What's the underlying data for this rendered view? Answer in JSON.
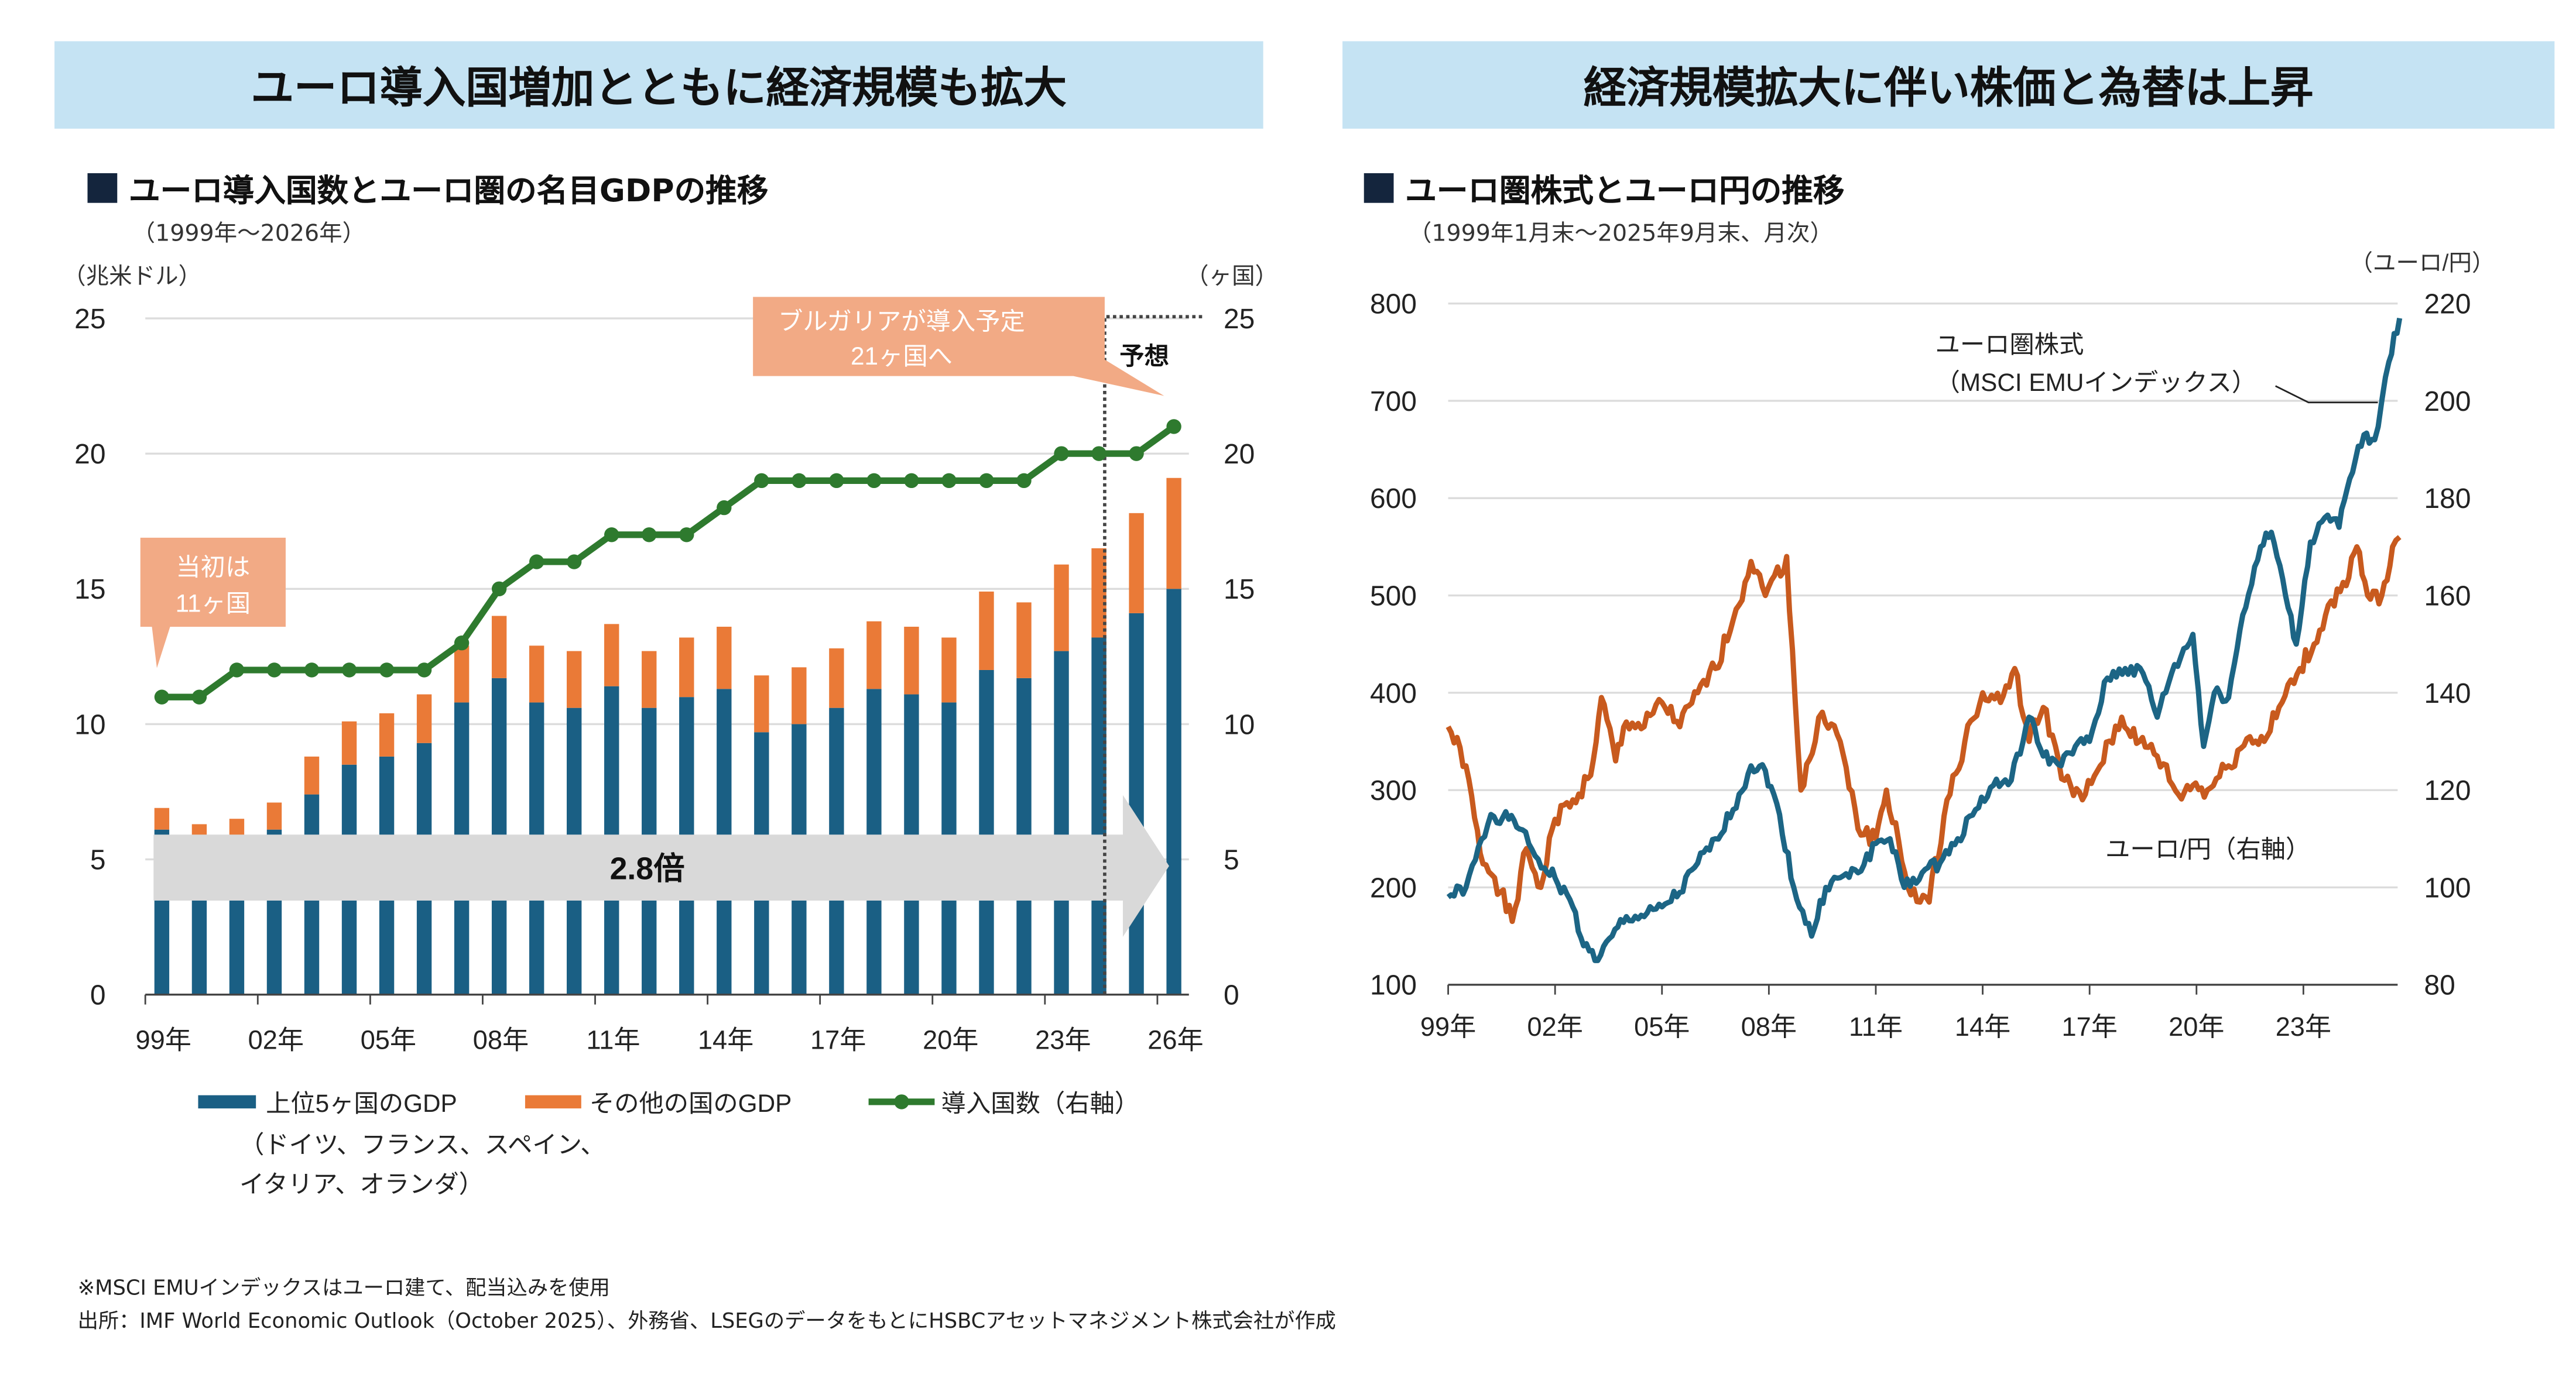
{
  "left": {
    "banner": "ユーロ導入国増加とともに経済規模も拡大",
    "title": "ユーロ導入国数とユーロ圏の名目GDPの推移",
    "subtitle": "（1999年～2026年）",
    "callout_initial": [
      "当初は",
      "11ヶ国"
    ],
    "callout_bulgaria": [
      "ブルガリアが導入予定",
      "21ヶ国へ"
    ],
    "forecast_label": "予想",
    "growth_label": "2.8倍",
    "legend_note": [
      "（ドイツ、フランス、スペイン、",
      "イタリア、オランダ）"
    ]
  },
  "right": {
    "banner": "経済規模拡大に伴い株価と為替は上昇",
    "title": "ユーロ圏株式とユーロ円の推移",
    "subtitle": "（1999年1月末～2025年9月末、月次）",
    "stock_label": [
      "ユーロ圏株式",
      "（MSCI EMUインデックス）"
    ],
    "fx_label": "ユーロ/円（右軸）"
  },
  "footer": {
    "note": "※MSCI EMUインデックスはユーロ建て、配当込みを使用",
    "source": "出所：IMF World Economic Outlook（October 2025）、外務省、LSEGのデータをもとにHSBCアセットマネジメント株式会社が作成"
  },
  "chart_data": [
    {
      "type": "bar",
      "stacked": true,
      "categories": [
        "1999",
        "2000",
        "2001",
        "2002",
        "2003",
        "2004",
        "2005",
        "2006",
        "2007",
        "2008",
        "2009",
        "2010",
        "2011",
        "2012",
        "2013",
        "2014",
        "2015",
        "2016",
        "2017",
        "2018",
        "2019",
        "2020",
        "2021",
        "2022",
        "2023",
        "2024",
        "2025",
        "2026"
      ],
      "x_tick_labels": [
        "99年",
        "02年",
        "05年",
        "08年",
        "11年",
        "14年",
        "17年",
        "20年",
        "23年",
        "26年"
      ],
      "ylabel": "（兆米ドル）",
      "y2label": "（ヶ国）",
      "ylim": [
        0,
        25
      ],
      "y2lim": [
        0,
        25
      ],
      "yticks": [
        0,
        5,
        10,
        15,
        20,
        25
      ],
      "y2ticks": [
        0,
        5,
        10,
        15,
        20,
        25
      ],
      "grid": true,
      "legend_position": "bottom",
      "forecast_from": "2025",
      "series": [
        {
          "name": "上位5ヶ国のGDP",
          "kind": "bar",
          "color": "#1a5f84",
          "values": [
            6.1,
            5.6,
            5.7,
            6.1,
            7.4,
            8.5,
            8.8,
            9.3,
            10.8,
            11.7,
            10.8,
            10.6,
            11.4,
            10.6,
            11.0,
            11.3,
            9.7,
            10.0,
            10.6,
            11.3,
            11.1,
            10.8,
            12.0,
            11.7,
            12.7,
            13.2,
            14.1,
            15.0
          ]
        },
        {
          "name": "その他の国のGDP",
          "kind": "bar",
          "color": "#ea7a37",
          "values": [
            0.8,
            0.7,
            0.8,
            1.0,
            1.4,
            1.6,
            1.6,
            1.8,
            2.1,
            2.3,
            2.1,
            2.1,
            2.3,
            2.1,
            2.2,
            2.3,
            2.1,
            2.1,
            2.2,
            2.5,
            2.5,
            2.4,
            2.9,
            2.8,
            3.2,
            3.3,
            3.7,
            4.1
          ]
        },
        {
          "name": "導入国数（右軸）",
          "kind": "line",
          "axis": "right",
          "color": "#2e7a2e",
          "values": [
            11,
            11,
            12,
            12,
            12,
            12,
            12,
            12,
            13,
            15,
            16,
            16,
            17,
            17,
            17,
            18,
            19,
            19,
            19,
            19,
            19,
            19,
            19,
            19,
            20,
            20,
            20,
            21
          ]
        }
      ]
    },
    {
      "type": "line",
      "x_tick_labels": [
        "99年",
        "02年",
        "05年",
        "08年",
        "11年",
        "14年",
        "17年",
        "20年",
        "23年"
      ],
      "y2label": "（ユーロ/円）",
      "ylim": [
        100,
        800
      ],
      "y2lim": [
        80,
        220
      ],
      "yticks": [
        100,
        200,
        300,
        400,
        500,
        600,
        700,
        800
      ],
      "y2ticks": [
        80,
        100,
        120,
        140,
        160,
        180,
        200,
        220
      ],
      "grid": true,
      "series": [
        {
          "name": "ユーロ圏株式（MSCI EMUインデックス）",
          "axis": "left",
          "color": "#1c6585",
          "x": [
            1999.0,
            1999.5,
            2000.2,
            2000.7,
            2001.0,
            2001.7,
            2002.0,
            2002.5,
            2002.8,
            2003.2,
            2003.6,
            2004.0,
            2004.5,
            2005.0,
            2005.5,
            2006.0,
            2006.5,
            2007.0,
            2007.5,
            2007.9,
            2008.3,
            2008.7,
            2009.2,
            2009.6,
            2010.0,
            2010.5,
            2011.0,
            2011.4,
            2011.8,
            2012.3,
            2012.8,
            2013.3,
            2013.8,
            2014.3,
            2014.8,
            2015.3,
            2015.7,
            2016.2,
            2016.6,
            2017.0,
            2017.5,
            2018.0,
            2018.5,
            2018.9,
            2019.3,
            2019.9,
            2020.2,
            2020.5,
            2020.9,
            2021.3,
            2021.8,
            2022.1,
            2022.5,
            2022.8,
            2023.2,
            2023.6,
            2024.0,
            2024.3,
            2024.7,
            2025.0,
            2025.2,
            2025.4,
            2025.7
          ],
          "y": [
            190,
            200,
            275,
            270,
            260,
            220,
            210,
            180,
            140,
            125,
            150,
            170,
            170,
            180,
            195,
            225,
            250,
            280,
            325,
            320,
            275,
            200,
            150,
            200,
            210,
            215,
            245,
            250,
            200,
            215,
            225,
            250,
            280,
            305,
            310,
            375,
            335,
            325,
            345,
            350,
            415,
            425,
            420,
            375,
            420,
            460,
            345,
            400,
            395,
            480,
            550,
            565,
            500,
            450,
            555,
            580,
            570,
            620,
            665,
            660,
            700,
            740,
            785
          ]
        },
        {
          "name": "ユーロ/円（右軸）",
          "axis": "right",
          "color": "#c85a1e",
          "x": [
            1999.0,
            1999.5,
            1999.9,
            2000.3,
            2000.8,
            2001.2,
            2001.6,
            2002.0,
            2002.5,
            2003.0,
            2003.3,
            2003.7,
            2004.0,
            2004.5,
            2005.0,
            2005.5,
            2006.0,
            2006.5,
            2007.0,
            2007.5,
            2007.9,
            2008.5,
            2008.9,
            2009.3,
            2009.5,
            2010.0,
            2010.5,
            2011.0,
            2011.3,
            2011.9,
            2012.5,
            2013.0,
            2013.5,
            2014.0,
            2014.5,
            2014.9,
            2015.3,
            2015.7,
            2016.3,
            2016.8,
            2017.3,
            2017.9,
            2018.4,
            2018.9,
            2019.5,
            2019.9,
            2020.3,
            2020.9,
            2021.5,
            2021.9,
            2022.4,
            2022.9,
            2023.3,
            2023.7,
            2024.2,
            2024.5,
            2024.8,
            2025.2,
            2025.5,
            2025.7
          ],
          "y": [
            133,
            125,
            107,
            102,
            93,
            108,
            100,
            114,
            118,
            123,
            139,
            126,
            134,
            133,
            138,
            133,
            140,
            145,
            155,
            167,
            160,
            168,
            120,
            130,
            136,
            130,
            112,
            110,
            120,
            100,
            97,
            118,
            130,
            140,
            138,
            145,
            130,
            137,
            122,
            118,
            125,
            135,
            130,
            127,
            119,
            121,
            120,
            125,
            131,
            130,
            138,
            145,
            150,
            158,
            162,
            170,
            160,
            160,
            170,
            172
          ]
        }
      ]
    }
  ]
}
